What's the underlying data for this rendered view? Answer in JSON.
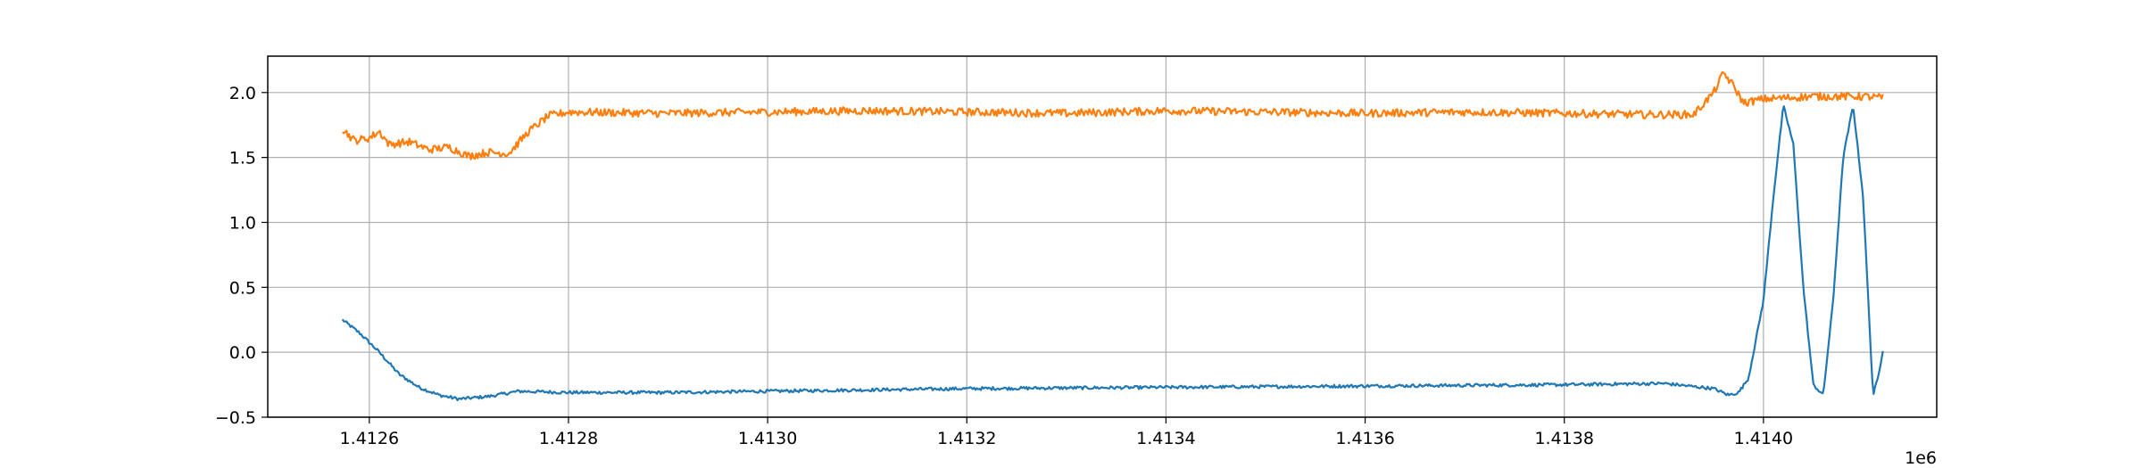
{
  "chart_data": {
    "type": "line",
    "title": "",
    "xlabel": "",
    "ylabel": "",
    "x_offset_label": "1e6",
    "xlim": [
      1412498,
      1414174
    ],
    "ylim": [
      -0.5,
      2.28
    ],
    "grid": true,
    "x_ticks": [
      {
        "value": 1412600,
        "label": "1.4126"
      },
      {
        "value": 1412800,
        "label": "1.4128"
      },
      {
        "value": 1413000,
        "label": "1.4130"
      },
      {
        "value": 1413200,
        "label": "1.4132"
      },
      {
        "value": 1413400,
        "label": "1.4134"
      },
      {
        "value": 1413600,
        "label": "1.4136"
      },
      {
        "value": 1413800,
        "label": "1.4138"
      },
      {
        "value": 1414000,
        "label": "1.4140"
      }
    ],
    "y_ticks": [
      {
        "value": -0.5,
        "label": "−0.5"
      },
      {
        "value": 0.0,
        "label": "0.0"
      },
      {
        "value": 0.5,
        "label": "0.5"
      },
      {
        "value": 1.0,
        "label": "1.0"
      },
      {
        "value": 1.5,
        "label": "1.5"
      },
      {
        "value": 2.0,
        "label": "2.0"
      }
    ],
    "series": [
      {
        "color": "#1f77b4",
        "noise": 0.012,
        "x": [
          1412573,
          1412590,
          1412610,
          1412630,
          1412650,
          1412670,
          1412690,
          1412720,
          1412750,
          1412800,
          1412900,
          1413000,
          1413200,
          1413400,
          1413600,
          1413800,
          1413900,
          1413950,
          1413965,
          1413975,
          1413985,
          1414000,
          1414010,
          1414020,
          1414030,
          1414040,
          1414050,
          1414060,
          1414070,
          1414080,
          1414090,
          1414100,
          1414110,
          1414115,
          1414120
        ],
        "y": [
          0.25,
          0.15,
          0.0,
          -0.17,
          -0.27,
          -0.33,
          -0.36,
          -0.34,
          -0.3,
          -0.31,
          -0.31,
          -0.3,
          -0.28,
          -0.27,
          -0.26,
          -0.25,
          -0.24,
          -0.28,
          -0.33,
          -0.31,
          -0.2,
          0.4,
          1.2,
          1.9,
          1.6,
          0.5,
          -0.25,
          -0.33,
          0.4,
          1.5,
          1.9,
          1.2,
          -0.33,
          -0.2,
          0.02
        ]
      },
      {
        "color": "#ff7f0e",
        "noise": 0.03,
        "x": [
          1412573,
          1412585,
          1412600,
          1412610,
          1412620,
          1412640,
          1412660,
          1412680,
          1412700,
          1412720,
          1412740,
          1412760,
          1412780,
          1412800,
          1412900,
          1413000,
          1413100,
          1413200,
          1413300,
          1413400,
          1413500,
          1413600,
          1413700,
          1413800,
          1413880,
          1413930,
          1413950,
          1413960,
          1413970,
          1413980,
          1414000,
          1414050,
          1414100,
          1414120
        ],
        "y": [
          1.72,
          1.63,
          1.65,
          1.7,
          1.6,
          1.62,
          1.56,
          1.58,
          1.51,
          1.54,
          1.53,
          1.7,
          1.82,
          1.85,
          1.84,
          1.85,
          1.86,
          1.85,
          1.84,
          1.86,
          1.85,
          1.84,
          1.85,
          1.84,
          1.83,
          1.83,
          2.0,
          2.15,
          2.05,
          1.92,
          1.95,
          1.97,
          1.97,
          1.96
        ]
      }
    ]
  }
}
